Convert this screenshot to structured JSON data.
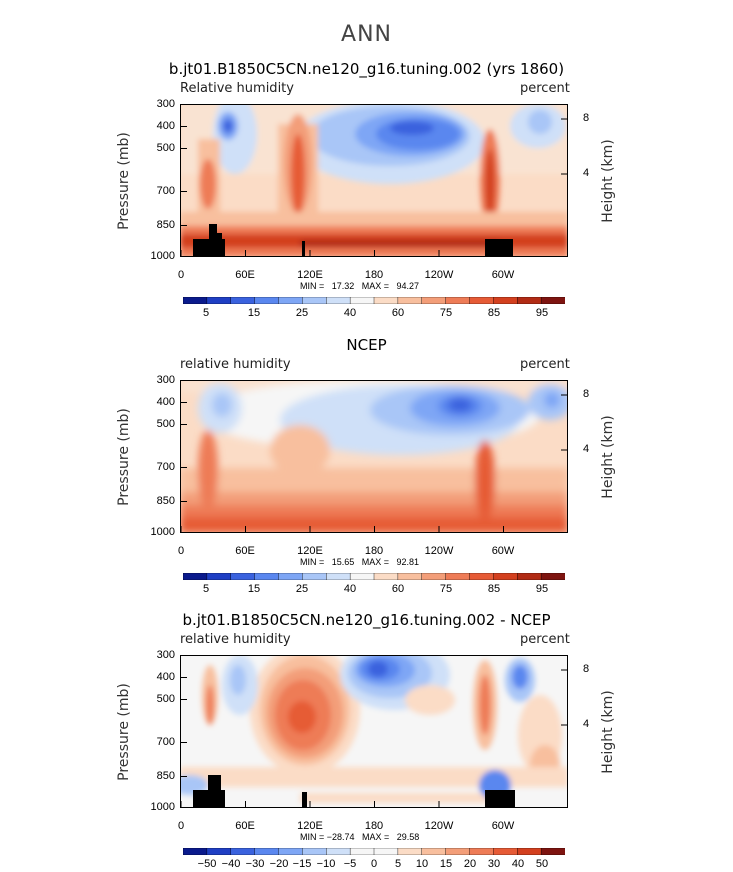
{
  "title": "ANN",
  "panels": [
    {
      "title": "b.jt01.B1850C5CN.ne120_g16.tuning.002 (yrs 1860)",
      "left_label": "Relative humidity",
      "right_label": "percent",
      "min_max": "MIN =   17.32   MAX =   94.27"
    },
    {
      "title": "NCEP",
      "left_label": "relative humidity",
      "right_label": "percent",
      "min_max": "MIN =   15.65   MAX =   92.81"
    },
    {
      "title": "b.jt01.B1850C5CN.ne120_g16.tuning.002 - NCEP",
      "left_label": "relative humidity",
      "right_label": "percent",
      "min_max": "MIN = −28.74   MAX =   29.58"
    }
  ],
  "axes": {
    "ylabel_left": "Pressure (mb)",
    "ylabel_right": "Height (km)",
    "pressure_ticks": [
      "300",
      "400",
      "500",
      "700",
      "850",
      "1000"
    ],
    "height_ticks": [
      "8",
      "4"
    ],
    "x_ticks": [
      "0",
      "60E",
      "120E",
      "180",
      "120W",
      "60W"
    ]
  },
  "colorbars": {
    "abs": {
      "labels": [
        "5",
        "15",
        "25",
        "40",
        "60",
        "75",
        "85",
        "95"
      ],
      "colors": [
        "#0a1a8c",
        "#1f3fc4",
        "#3a62de",
        "#5a87ef",
        "#7ea6f5",
        "#a9c6f7",
        "#cfe0f8",
        "#f6f6f6",
        "#fbdcc6",
        "#f8bf9e",
        "#f39e79",
        "#ee7c57",
        "#e65b36",
        "#d3401f",
        "#b12b14",
        "#7e1410"
      ]
    },
    "diff": {
      "labels": [
        "−50",
        "−40",
        "−30",
        "−20",
        "−15",
        "−10",
        "−5",
        "0",
        "5",
        "10",
        "15",
        "20",
        "30",
        "40",
        "50"
      ],
      "colors": [
        "#0a1a8c",
        "#1f3fc4",
        "#3a62de",
        "#5a87ef",
        "#7ea6f5",
        "#a9c6f7",
        "#cfe0f8",
        "#f6f6f6",
        "#f6f6f6",
        "#fbdcc6",
        "#f8bf9e",
        "#f39e79",
        "#ee7c57",
        "#e65b36",
        "#d3401f",
        "#7e1410"
      ]
    }
  },
  "chart_data": [
    {
      "type": "heatmap",
      "title": "b.jt01.B1850C5CN.ne120_g16.tuning.002 (yrs 1860)",
      "xlabel": "",
      "ylabel": "Pressure (mb)",
      "y2label": "Height (km)",
      "x_ticks": [
        "0",
        "60E",
        "120E",
        "180",
        "120W",
        "60W"
      ],
      "pressure_levels": [
        300,
        400,
        500,
        700,
        850,
        1000
      ],
      "min": 17.32,
      "max": 94.27,
      "units": "percent",
      "levels": [
        5,
        10,
        15,
        20,
        25,
        30,
        40,
        50,
        60,
        65,
        70,
        75,
        80,
        85,
        90,
        95
      ]
    },
    {
      "type": "heatmap",
      "title": "NCEP",
      "ylabel": "Pressure (mb)",
      "y2label": "Height (km)",
      "x_ticks": [
        "0",
        "60E",
        "120E",
        "180",
        "120W",
        "60W"
      ],
      "pressure_levels": [
        300,
        400,
        500,
        700,
        850,
        1000
      ],
      "min": 15.65,
      "max": 92.81,
      "units": "percent",
      "levels": [
        5,
        10,
        15,
        20,
        25,
        30,
        40,
        50,
        60,
        65,
        70,
        75,
        80,
        85,
        90,
        95
      ]
    },
    {
      "type": "heatmap",
      "title": "b.jt01.B1850C5CN.ne120_g16.tuning.002 - NCEP",
      "ylabel": "Pressure (mb)",
      "y2label": "Height (km)",
      "x_ticks": [
        "0",
        "60E",
        "120E",
        "180",
        "120W",
        "60W"
      ],
      "pressure_levels": [
        300,
        400,
        500,
        700,
        850,
        1000
      ],
      "min": -28.74,
      "max": 29.58,
      "units": "percent",
      "levels": [
        -50,
        -40,
        -30,
        -20,
        -15,
        -10,
        -5,
        0,
        5,
        10,
        15,
        20,
        30,
        40,
        50
      ]
    }
  ]
}
